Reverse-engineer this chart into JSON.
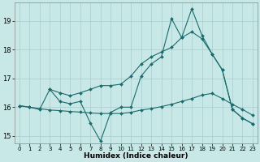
{
  "xlabel": "Humidex (Indice chaleur)",
  "background_color": "#c8e8e8",
  "grid_color": "#a8cccc",
  "line_color": "#1a6b6b",
  "xlim": [
    -0.5,
    23.5
  ],
  "ylim": [
    14.75,
    19.65
  ],
  "yticks": [
    15,
    16,
    17,
    18,
    19
  ],
  "xticks": [
    0,
    1,
    2,
    3,
    4,
    5,
    6,
    7,
    8,
    9,
    10,
    11,
    12,
    13,
    14,
    15,
    16,
    17,
    18,
    19,
    20,
    21,
    22,
    23
  ],
  "series1_x": [
    0,
    1,
    2,
    3,
    4,
    5,
    6,
    7,
    8,
    9,
    10,
    11,
    12,
    13,
    14,
    15,
    16,
    17,
    18,
    19,
    20,
    21,
    22,
    23
  ],
  "series1_y": [
    16.05,
    16.0,
    15.92,
    16.62,
    16.2,
    16.12,
    16.2,
    15.45,
    14.82,
    15.82,
    16.0,
    16.0,
    17.08,
    17.5,
    17.75,
    19.08,
    18.42,
    19.42,
    18.5,
    17.85,
    17.3,
    15.92,
    15.62,
    15.42
  ],
  "series2_x": [
    3,
    4,
    5,
    6,
    7,
    8,
    9,
    10,
    11,
    12,
    13,
    14,
    15,
    16,
    17,
    18,
    19,
    20,
    21,
    22,
    23
  ],
  "series2_y": [
    16.62,
    16.5,
    16.4,
    16.5,
    16.62,
    16.75,
    16.75,
    16.8,
    17.08,
    17.5,
    17.75,
    17.92,
    18.08,
    18.42,
    18.62,
    18.38,
    17.85,
    17.3,
    15.92,
    15.62,
    15.42
  ],
  "series3_x": [
    0,
    1,
    2,
    3,
    4,
    5,
    6,
    7,
    8,
    9,
    10,
    11,
    12,
    13,
    14,
    15,
    16,
    17,
    18,
    19,
    20,
    21,
    22,
    23
  ],
  "series3_y": [
    16.05,
    16.0,
    15.95,
    15.9,
    15.88,
    15.85,
    15.83,
    15.8,
    15.78,
    15.78,
    15.78,
    15.82,
    15.9,
    15.95,
    16.02,
    16.1,
    16.2,
    16.3,
    16.42,
    16.48,
    16.3,
    16.1,
    15.92,
    15.72
  ]
}
